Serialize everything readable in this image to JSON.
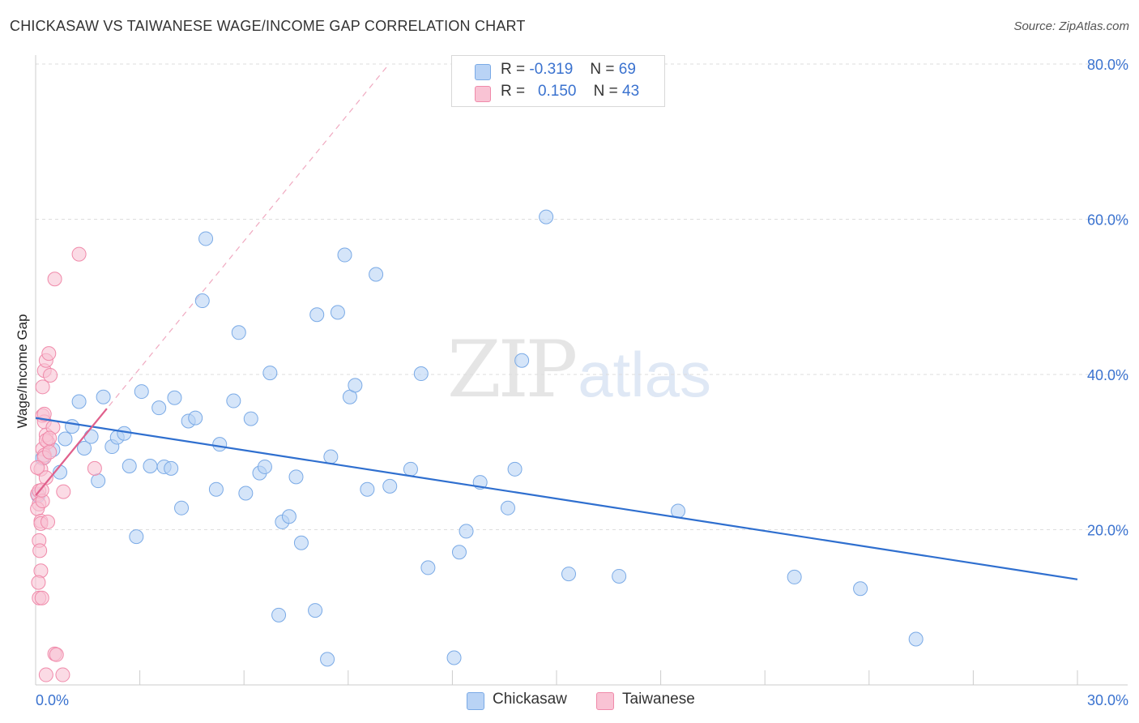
{
  "title": "CHICKASAW VS TAIWANESE WAGE/INCOME GAP CORRELATION CHART",
  "source": "Source: ZipAtlas.com",
  "watermark": {
    "zip": "ZIP",
    "atlas": "atlas"
  },
  "legend_top": {
    "rows": [
      {
        "r_label": "R =",
        "r_value": "-0.319",
        "n_label": "N =",
        "n_value": "69"
      },
      {
        "r_label": "R =",
        "r_value": "0.150",
        "n_label": "N =",
        "n_value": "43"
      }
    ]
  },
  "colors": {
    "chickasaw_fill": "#b9d3f5",
    "chickasaw_stroke": "#7aaae6",
    "chickasaw_line": "#2f6fcf",
    "taiwanese_fill": "#f9c3d4",
    "taiwanese_stroke": "#f08aaa",
    "taiwanese_line": "#e0608c",
    "tick_label": "#3a72cf",
    "grid": "#dddddd"
  },
  "chart_data": {
    "type": "scatter",
    "title": "CHICKASAW VS TAIWANESE WAGE/INCOME GAP CORRELATION CHART",
    "xlabel": "",
    "ylabel": "Wage/Income Gap",
    "xlim": [
      0,
      30
    ],
    "ylim": [
      0,
      80
    ],
    "x_tick_labels": [
      "0.0%",
      "30.0%"
    ],
    "y_ticks": [
      20,
      40,
      60,
      80
    ],
    "y_tick_labels": [
      "20.0%",
      "40.0%",
      "60.0%",
      "80.0%"
    ],
    "grid": "horizontal dashed",
    "legend_position": "bottom",
    "series": [
      {
        "name": "Chickasaw",
        "r": -0.319,
        "n": 69,
        "trend": {
          "x": [
            0,
            30
          ],
          "y": [
            34.4,
            13.6
          ]
        },
        "points": [
          [
            0.07,
            24.4
          ],
          [
            0.2,
            29.2
          ],
          [
            0.5,
            30.3
          ],
          [
            0.7,
            27.4
          ],
          [
            0.85,
            31.7
          ],
          [
            1.05,
            33.3
          ],
          [
            1.25,
            36.5
          ],
          [
            1.4,
            30.5
          ],
          [
            1.6,
            32.0
          ],
          [
            1.8,
            26.3
          ],
          [
            1.95,
            37.1
          ],
          [
            2.2,
            30.7
          ],
          [
            2.35,
            31.9
          ],
          [
            2.55,
            32.4
          ],
          [
            2.7,
            28.2
          ],
          [
            2.9,
            19.1
          ],
          [
            3.05,
            37.8
          ],
          [
            3.3,
            28.2
          ],
          [
            3.55,
            35.7
          ],
          [
            3.7,
            28.1
          ],
          [
            3.9,
            27.9
          ],
          [
            4.0,
            37.0
          ],
          [
            4.2,
            22.8
          ],
          [
            4.4,
            34.0
          ],
          [
            4.6,
            34.4
          ],
          [
            4.8,
            49.5
          ],
          [
            4.9,
            57.5
          ],
          [
            5.2,
            25.2
          ],
          [
            5.3,
            31.0
          ],
          [
            5.7,
            36.6
          ],
          [
            5.85,
            45.4
          ],
          [
            6.05,
            24.7
          ],
          [
            6.2,
            34.3
          ],
          [
            6.45,
            27.3
          ],
          [
            6.6,
            28.1
          ],
          [
            6.75,
            40.2
          ],
          [
            7.0,
            9.0
          ],
          [
            7.1,
            21.0
          ],
          [
            7.3,
            21.7
          ],
          [
            7.5,
            26.8
          ],
          [
            7.65,
            18.3
          ],
          [
            8.05,
            9.6
          ],
          [
            8.1,
            47.7
          ],
          [
            8.4,
            3.3
          ],
          [
            8.5,
            29.4
          ],
          [
            8.7,
            48.0
          ],
          [
            8.9,
            55.4
          ],
          [
            9.05,
            37.1
          ],
          [
            9.2,
            38.6
          ],
          [
            9.55,
            25.2
          ],
          [
            9.8,
            52.9
          ],
          [
            10.2,
            25.6
          ],
          [
            10.8,
            27.8
          ],
          [
            11.1,
            40.1
          ],
          [
            11.3,
            15.1
          ],
          [
            12.05,
            3.5
          ],
          [
            12.2,
            17.1
          ],
          [
            12.4,
            19.8
          ],
          [
            12.8,
            26.1
          ],
          [
            13.6,
            22.8
          ],
          [
            13.8,
            27.8
          ],
          [
            14.0,
            41.8
          ],
          [
            14.7,
            60.3
          ],
          [
            15.35,
            14.3
          ],
          [
            16.8,
            14.0
          ],
          [
            18.5,
            22.4
          ],
          [
            21.85,
            13.9
          ],
          [
            23.75,
            12.4
          ],
          [
            25.35,
            5.9
          ]
        ]
      },
      {
        "name": "Taiwanese",
        "r": 0.15,
        "n": 43,
        "trend": {
          "x": [
            0,
            2.05
          ],
          "y": [
            24.4,
            35.6
          ]
        },
        "points": [
          [
            0.05,
            24.6
          ],
          [
            0.1,
            23.3
          ],
          [
            0.15,
            27.8
          ],
          [
            0.2,
            30.4
          ],
          [
            0.25,
            29.6
          ],
          [
            0.3,
            26.7
          ],
          [
            0.35,
            31.3
          ],
          [
            0.05,
            22.7
          ],
          [
            0.1,
            25.0
          ],
          [
            0.15,
            21.1
          ],
          [
            0.2,
            34.7
          ],
          [
            0.25,
            33.9
          ],
          [
            0.3,
            32.2
          ],
          [
            0.1,
            18.6
          ],
          [
            0.12,
            17.3
          ],
          [
            0.15,
            14.7
          ],
          [
            0.08,
            13.2
          ],
          [
            0.1,
            11.2
          ],
          [
            0.18,
            11.2
          ],
          [
            0.2,
            38.4
          ],
          [
            0.25,
            40.5
          ],
          [
            0.3,
            41.8
          ],
          [
            0.38,
            42.7
          ],
          [
            0.42,
            39.9
          ],
          [
            0.5,
            33.2
          ],
          [
            0.25,
            29.3
          ],
          [
            0.3,
            31.5
          ],
          [
            0.4,
            30.0
          ],
          [
            0.55,
            52.3
          ],
          [
            1.25,
            55.5
          ],
          [
            0.8,
            24.9
          ],
          [
            1.7,
            27.9
          ],
          [
            0.55,
            4.0
          ],
          [
            0.6,
            3.9
          ],
          [
            0.3,
            1.3
          ],
          [
            0.78,
            1.3
          ],
          [
            0.15,
            20.8
          ],
          [
            0.35,
            21.0
          ],
          [
            0.05,
            28.0
          ],
          [
            0.2,
            23.7
          ],
          [
            0.4,
            31.8
          ],
          [
            0.25,
            34.9
          ],
          [
            0.18,
            25.1
          ]
        ]
      }
    ]
  }
}
